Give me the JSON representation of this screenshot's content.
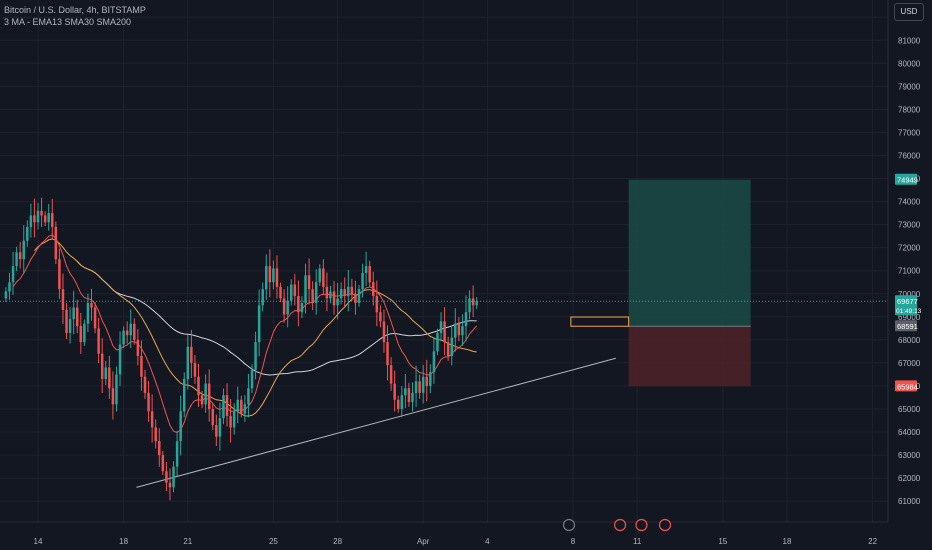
{
  "header": {
    "symbol_line": "Bitcoin / U.S. Dollar, 4h, BITSTAMP",
    "indicator_line": "3 MA - EMA13 SMA30 SMA200",
    "currency": "USD"
  },
  "colors": {
    "background": "#131722",
    "up": "#26a69a",
    "down": "#ef5350",
    "ema13": "#ef5350",
    "sma30": "#e8a54f",
    "sma200": "#d1d4dc",
    "grid": "#1e222d",
    "axis_text": "#b2b5be",
    "profit_zone": "#1b4b45",
    "loss_zone": "#4f2328"
  },
  "chart_data": {
    "type": "candlestick",
    "title": "Bitcoin / U.S. Dollar, 4h, BITSTAMP",
    "ylim": [
      60400,
      82400
    ],
    "y_ticks": [
      61000,
      62000,
      63000,
      64000,
      65000,
      66000,
      67000,
      68000,
      69000,
      70000,
      71000,
      72000,
      73000,
      74000,
      75000,
      76000,
      77000,
      78000,
      79000,
      80000,
      81000,
      82000
    ],
    "x_tick_labels": [
      {
        "label": "14",
        "day": 0
      },
      {
        "label": "18",
        "day": 4
      },
      {
        "label": "21",
        "day": 7
      },
      {
        "label": "25",
        "day": 11
      },
      {
        "label": "28",
        "day": 14
      },
      {
        "label": "Apr",
        "day": 18
      },
      {
        "label": "4",
        "day": 21
      },
      {
        "label": "8",
        "day": 25
      },
      {
        "label": "11",
        "day": 28
      },
      {
        "label": "15",
        "day": 32
      },
      {
        "label": "18",
        "day": 35
      },
      {
        "label": "22",
        "day": 39
      }
    ],
    "candles_per_day": 6,
    "candles_start_day": -1.5,
    "closes": [
      70100,
      70500,
      71200,
      71800,
      71500,
      72300,
      72900,
      73400,
      73100,
      73600,
      73400,
      73100,
      73500,
      72900,
      71500,
      70200,
      69300,
      68300,
      68900,
      69400,
      68600,
      67900,
      68700,
      69600,
      69400,
      68500,
      67400,
      66300,
      66800,
      65900,
      65200,
      66500,
      67800,
      68400,
      68200,
      68700,
      68000,
      67300,
      66400,
      65700,
      64900,
      64200,
      63600,
      63000,
      62300,
      61800,
      61600,
      62500,
      63600,
      64900,
      66300,
      67700,
      67000,
      66400,
      65600,
      65200,
      66100,
      65000,
      64300,
      63800,
      64600,
      65600,
      64700,
      64200,
      64900,
      65400,
      64800,
      65200,
      65900,
      66700,
      67900,
      69500,
      70200,
      71200,
      70500,
      71100,
      70300,
      69800,
      69100,
      69700,
      70400,
      69900,
      69200,
      69600,
      70800,
      70200,
      69600,
      70500,
      71100,
      70300,
      69800,
      70100,
      69500,
      69800,
      70200,
      69900,
      70300,
      70000,
      69600,
      70200,
      70900,
      71200,
      70500,
      69900,
      69200,
      68800,
      67900,
      66900,
      66100,
      65400,
      65000,
      65600,
      65900,
      65300,
      65700,
      66200,
      65700,
      66400,
      66000,
      66600,
      67500,
      68300,
      68800,
      67900,
      67300,
      68100,
      68700,
      68200,
      68600,
      69200,
      69800,
      69500,
      69677
    ],
    "current_price": 69677,
    "countdown": "01:49:13",
    "risk_reward": {
      "start_day": 27.6,
      "end_day": 33.3,
      "target": 74949,
      "entry": 68591,
      "stop": 65984
    },
    "entry_box": {
      "start_day": 24.9,
      "end_day": 27.6,
      "low": 68591,
      "high": 68991
    },
    "trendline": {
      "start_day": 4.6,
      "start_price": 61600,
      "end_day": 27.0,
      "end_price": 67200
    },
    "price_labels": [
      "74949",
      "69677",
      "68591",
      "65984"
    ]
  }
}
